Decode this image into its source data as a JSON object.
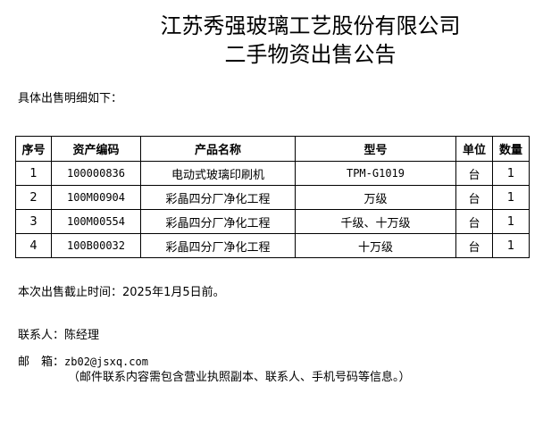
{
  "title_line1": "江苏秀强玻璃工艺股份有限公司",
  "title_line2": "二手物资出售公告",
  "intro": "具体出售明细如下：",
  "table": {
    "headers": [
      "序号",
      "资产编码",
      "产品名称",
      "型号",
      "单位",
      "数量"
    ],
    "rows": [
      [
        "1",
        "100000836",
        "电动式玻璃印刷机",
        "TPM-G1019",
        "台",
        "1"
      ],
      [
        "2",
        "100M00904",
        "彩晶四分厂净化工程",
        "万级",
        "台",
        "1"
      ],
      [
        "3",
        "100M00554",
        "彩晶四分厂净化工程",
        "千级、十万级",
        "台",
        "1"
      ],
      [
        "4",
        "100B00032",
        "彩晶四分厂净化工程",
        "十万级",
        "台",
        "1"
      ]
    ]
  },
  "deadline": "本次出售截止时间：2025年1月5日前。",
  "contact_label": "联系人：",
  "contact_name": "陈经理",
  "email_label": "邮　箱：",
  "email": "zb02@jsxq.com",
  "email_note": "（邮件联系内容需包含营业执照副本、联系人、手机号码等信息。）"
}
